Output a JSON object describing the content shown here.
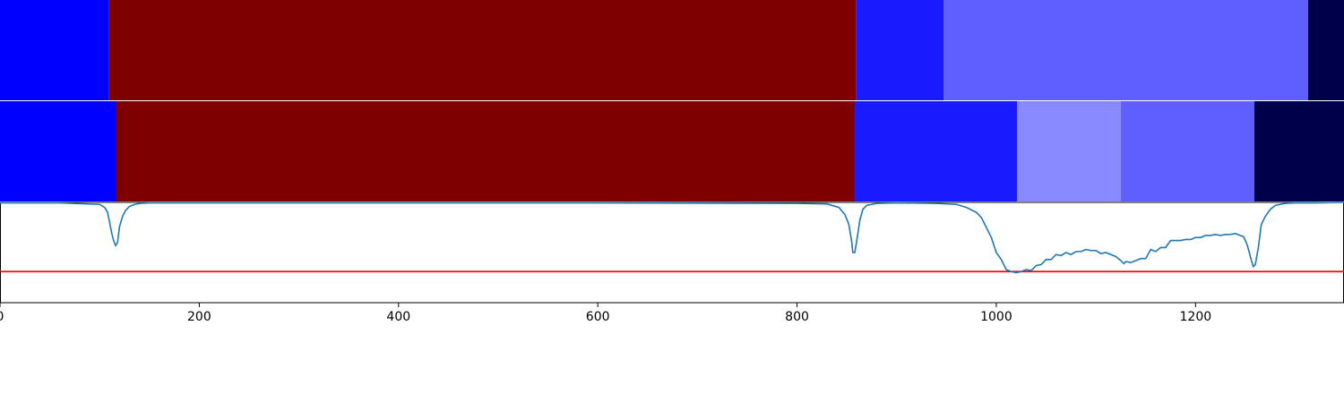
{
  "chart_data": {
    "type": "heatmap",
    "title": "",
    "xlabel": "",
    "ylabel": "",
    "xlim": [
      0,
      1349
    ],
    "x_ticks": [
      0,
      200,
      400,
      600,
      800,
      1000,
      1200
    ],
    "x_tick_labels": [
      "0",
      "200",
      "400",
      "600",
      "800",
      "1000",
      "1200"
    ],
    "segment_rows": [
      {
        "segments": [
          {
            "start": 0,
            "end": 109,
            "color": "#0000ff"
          },
          {
            "start": 109,
            "end": 859,
            "color": "#7f0000"
          },
          {
            "start": 859,
            "end": 947,
            "color": "#1a1aff"
          },
          {
            "start": 947,
            "end": 1313,
            "color": "#5f5fff"
          },
          {
            "start": 1313,
            "end": 1349,
            "color": "#00004a"
          }
        ]
      },
      {
        "segments": [
          {
            "start": 0,
            "end": 116,
            "color": "#0000ff"
          },
          {
            "start": 116,
            "end": 858,
            "color": "#7f0000"
          },
          {
            "start": 858,
            "end": 1021,
            "color": "#1a1aff"
          },
          {
            "start": 1021,
            "end": 1125,
            "color": "#8888ff"
          },
          {
            "start": 1125,
            "end": 1259,
            "color": "#5f5fff"
          },
          {
            "start": 1259,
            "end": 1349,
            "color": "#00004a"
          }
        ]
      }
    ],
    "line_panel": {
      "ylim": [
        0,
        1
      ],
      "threshold": 0.31,
      "threshold_color": "#ff0000",
      "line_color": "#1f77b4",
      "series": {
        "x": [
          0,
          60,
          100,
          105,
          108,
          110,
          112,
          114,
          116,
          118,
          120,
          123,
          126,
          130,
          135,
          140,
          150,
          170,
          200,
          400,
          600,
          800,
          830,
          842,
          848,
          852,
          855,
          856,
          858,
          860,
          863,
          866,
          870,
          880,
          900,
          940,
          960,
          970,
          980,
          985,
          990,
          995,
          1000,
          1005,
          1010,
          1015,
          1020,
          1025,
          1030,
          1035,
          1040,
          1045,
          1050,
          1055,
          1060,
          1065,
          1070,
          1075,
          1080,
          1085,
          1090,
          1095,
          1100,
          1105,
          1110,
          1115,
          1120,
          1125,
          1128,
          1130,
          1135,
          1140,
          1145,
          1150,
          1155,
          1160,
          1165,
          1170,
          1175,
          1180,
          1185,
          1190,
          1195,
          1200,
          1205,
          1210,
          1215,
          1220,
          1225,
          1230,
          1235,
          1240,
          1245,
          1248,
          1250,
          1252,
          1254,
          1256,
          1258,
          1260,
          1263,
          1266,
          1270,
          1275,
          1280,
          1290,
          1300,
          1320,
          1349
        ],
        "y": [
          0.995,
          0.995,
          0.98,
          0.95,
          0.9,
          0.8,
          0.7,
          0.62,
          0.57,
          0.6,
          0.76,
          0.86,
          0.92,
          0.96,
          0.98,
          0.99,
          0.995,
          0.995,
          0.995,
          0.995,
          0.995,
          0.99,
          0.985,
          0.95,
          0.88,
          0.78,
          0.6,
          0.5,
          0.5,
          0.62,
          0.82,
          0.93,
          0.97,
          0.99,
          0.995,
          0.99,
          0.98,
          0.95,
          0.9,
          0.85,
          0.75,
          0.65,
          0.5,
          0.43,
          0.33,
          0.31,
          0.3,
          0.31,
          0.33,
          0.32,
          0.37,
          0.38,
          0.43,
          0.43,
          0.48,
          0.47,
          0.5,
          0.48,
          0.51,
          0.51,
          0.53,
          0.52,
          0.52,
          0.49,
          0.5,
          0.48,
          0.46,
          0.42,
          0.39,
          0.41,
          0.4,
          0.42,
          0.44,
          0.44,
          0.53,
          0.51,
          0.55,
          0.55,
          0.62,
          0.62,
          0.62,
          0.63,
          0.63,
          0.65,
          0.65,
          0.67,
          0.67,
          0.68,
          0.67,
          0.68,
          0.68,
          0.69,
          0.67,
          0.66,
          0.62,
          0.57,
          0.5,
          0.42,
          0.36,
          0.38,
          0.55,
          0.78,
          0.86,
          0.93,
          0.97,
          0.99,
          0.995,
          0.995,
          1.0
        ]
      }
    }
  }
}
